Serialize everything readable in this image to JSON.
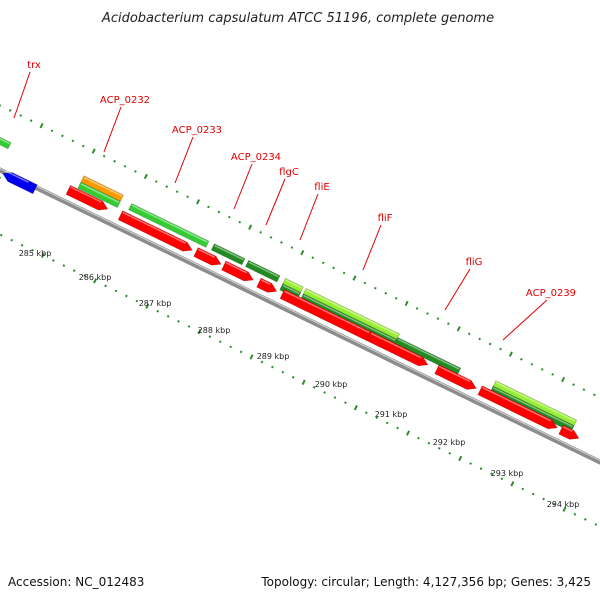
{
  "map": {
    "title": "Acidobacterium capsulatum ATCC 51196, complete genome",
    "accession": "Accession: NC_012483",
    "summary": "Topology: circular; Length: 4,127,356 bp; Genes: 3,425"
  },
  "colors": {
    "backbone": "#8c8c8c",
    "cds": "#ff0000",
    "gene_light_green": "#33cc33",
    "gene_dark_green": "#228b22",
    "gene_lime": "#99ee33",
    "rrna_orange": "#ff9900",
    "trna_blue": "#0000ee",
    "tick_green": "#2e8b2e",
    "label_red": "#e00000"
  },
  "gene_labels": [
    "trx",
    "ACP_0232",
    "ACP_0233",
    "ACP_0234",
    "flgC",
    "fliE",
    "fliF",
    "fliG",
    "ACP_0239"
  ],
  "kbp_ticks": [
    "285 kbp",
    "286 kbp",
    "287 kbp",
    "288 kbp",
    "289 kbp",
    "290 kbp",
    "291 kbp",
    "292 kbp",
    "293 kbp",
    "294 kbp"
  ]
}
